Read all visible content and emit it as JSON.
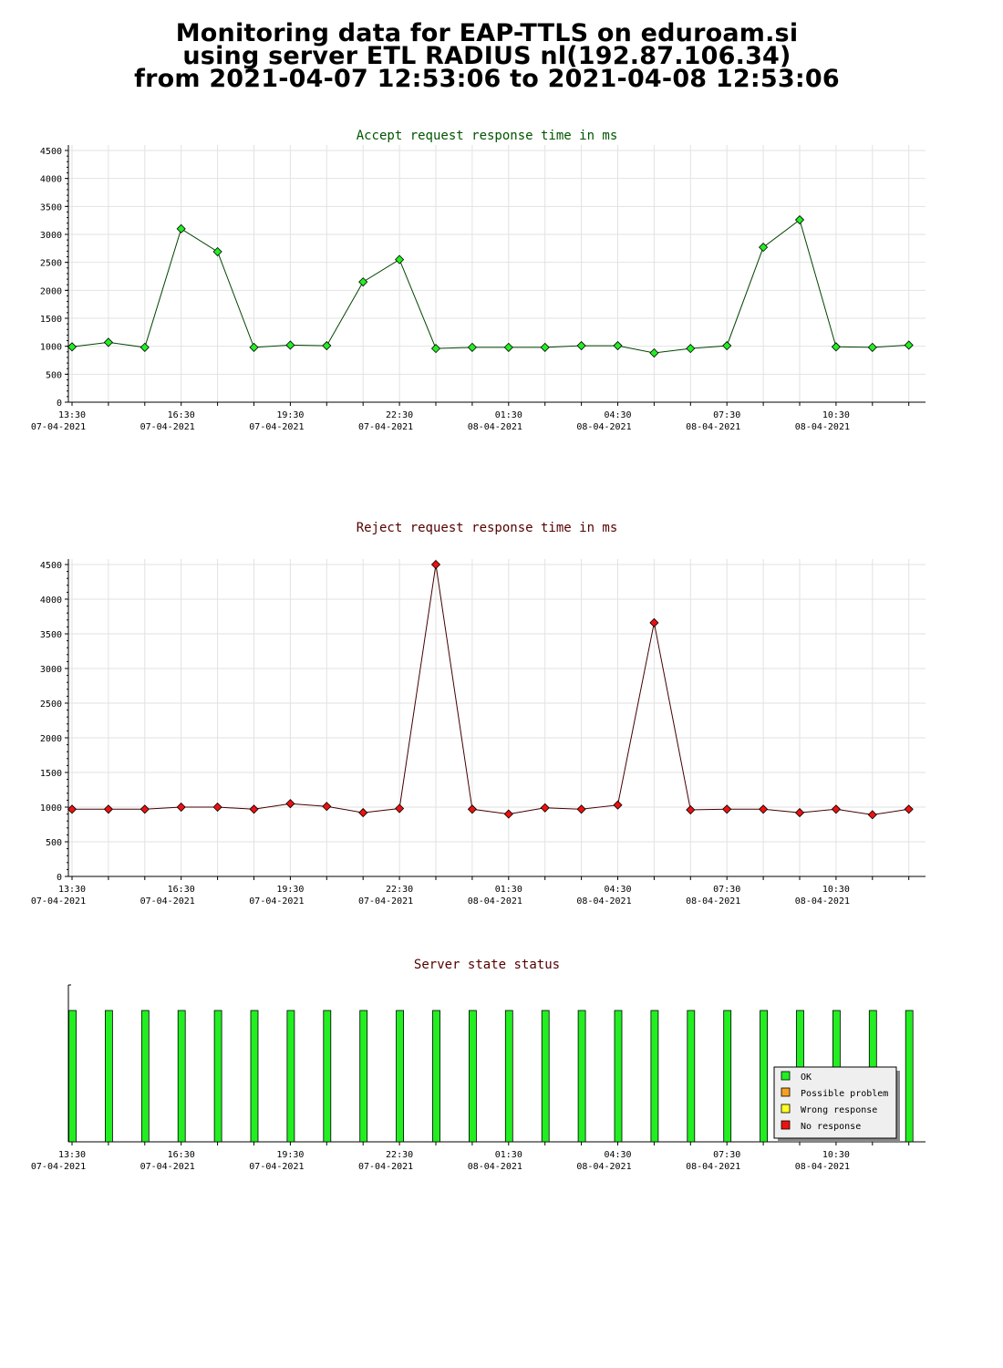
{
  "page": {
    "title_lines": [
      "Monitoring data for EAP-TTLS on eduroam.si",
      "using server ETL RADIUS nl(192.87.106.34)",
      "from 2021-04-07  12:53:06 to 2021-04-08  12:53:06"
    ]
  },
  "chart_data": [
    {
      "type": "line",
      "title": "Accept request response time in ms",
      "title_color": "#005500",
      "line_color": "#004400",
      "marker_color": "#22ee22",
      "xlabel": "",
      "ylabel": "",
      "ylim": [
        0,
        4500
      ],
      "yticks": [
        0,
        500,
        1000,
        1500,
        2000,
        2500,
        3000,
        3500,
        4000,
        4500
      ],
      "x_tick_labels": [
        [
          "13:30",
          "07-04-2021"
        ],
        [
          "16:30",
          "07-04-2021"
        ],
        [
          "19:30",
          "07-04-2021"
        ],
        [
          "22:30",
          "07-04-2021"
        ],
        [
          "01:30",
          "08-04-2021"
        ],
        [
          "04:30",
          "08-04-2021"
        ],
        [
          "07:30",
          "08-04-2021"
        ],
        [
          "10:30",
          "08-04-2021"
        ]
      ],
      "grid": true,
      "x_unit": "hours since 13:30 07-04-2021",
      "series": [
        {
          "x": [
            0,
            1,
            2,
            3,
            4,
            5,
            6,
            7,
            8,
            9,
            10,
            11,
            12,
            13,
            14,
            15,
            16,
            17,
            18,
            19,
            20,
            21,
            22,
            23
          ],
          "values": [
            990,
            1070,
            980,
            3100,
            2690,
            980,
            1020,
            1010,
            2150,
            2550,
            960,
            980,
            980,
            980,
            1010,
            1010,
            880,
            960,
            1010,
            2770,
            3260,
            990,
            980,
            1020
          ]
        }
      ]
    },
    {
      "type": "line",
      "title": "Reject request response time in ms",
      "title_color": "#550000",
      "line_color": "#440000",
      "marker_color": "#ee1111",
      "xlabel": "",
      "ylabel": "",
      "ylim": [
        0,
        4500
      ],
      "yticks": [
        0,
        500,
        1000,
        1500,
        2000,
        2500,
        3000,
        3500,
        4000,
        4500
      ],
      "x_tick_labels": [
        [
          "13:30",
          "07-04-2021"
        ],
        [
          "16:30",
          "07-04-2021"
        ],
        [
          "19:30",
          "07-04-2021"
        ],
        [
          "22:30",
          "07-04-2021"
        ],
        [
          "01:30",
          "08-04-2021"
        ],
        [
          "04:30",
          "08-04-2021"
        ],
        [
          "07:30",
          "08-04-2021"
        ],
        [
          "10:30",
          "08-04-2021"
        ]
      ],
      "grid": true,
      "x_unit": "hours since 13:30 07-04-2021",
      "series": [
        {
          "x": [
            0,
            1,
            2,
            3,
            4,
            5,
            6,
            7,
            8,
            9,
            10,
            11,
            12,
            13,
            14,
            15,
            16,
            17,
            18,
            19,
            20,
            21,
            22,
            23
          ],
          "values": [
            970,
            970,
            970,
            1000,
            1000,
            970,
            1050,
            1010,
            920,
            980,
            4500,
            970,
            900,
            990,
            970,
            1030,
            3660,
            960,
            970,
            970,
            920,
            970,
            890,
            970
          ]
        }
      ]
    },
    {
      "type": "bar",
      "title": "Server state status",
      "title_color": "#550000",
      "x_tick_labels": [
        [
          "13:30",
          "07-04-2021"
        ],
        [
          "16:30",
          "07-04-2021"
        ],
        [
          "19:30",
          "07-04-2021"
        ],
        [
          "22:30",
          "07-04-2021"
        ],
        [
          "01:30",
          "08-04-2021"
        ],
        [
          "04:30",
          "08-04-2021"
        ],
        [
          "07:30",
          "08-04-2021"
        ],
        [
          "10:30",
          "08-04-2021"
        ]
      ],
      "grid": false,
      "x_unit": "hours since 13:30 07-04-2021",
      "x": [
        0,
        1,
        2,
        3,
        4,
        5,
        6,
        7,
        8,
        9,
        10,
        11,
        12,
        13,
        14,
        15,
        16,
        17,
        18,
        19,
        20,
        21,
        22,
        23
      ],
      "states": [
        "OK",
        "OK",
        "OK",
        "OK",
        "OK",
        "OK",
        "OK",
        "OK",
        "OK",
        "OK",
        "OK",
        "OK",
        "OK",
        "OK",
        "OK",
        "OK",
        "OK",
        "OK",
        "OK",
        "OK",
        "OK",
        "OK",
        "OK",
        "OK"
      ],
      "legend_position": "bottom-right",
      "legend": [
        {
          "label": "OK",
          "color": "#22ee22"
        },
        {
          "label": "Possible problem",
          "color": "#f5a020"
        },
        {
          "label": "Wrong response",
          "color": "#ffff22"
        },
        {
          "label": "No response",
          "color": "#ee1111"
        }
      ]
    }
  ]
}
